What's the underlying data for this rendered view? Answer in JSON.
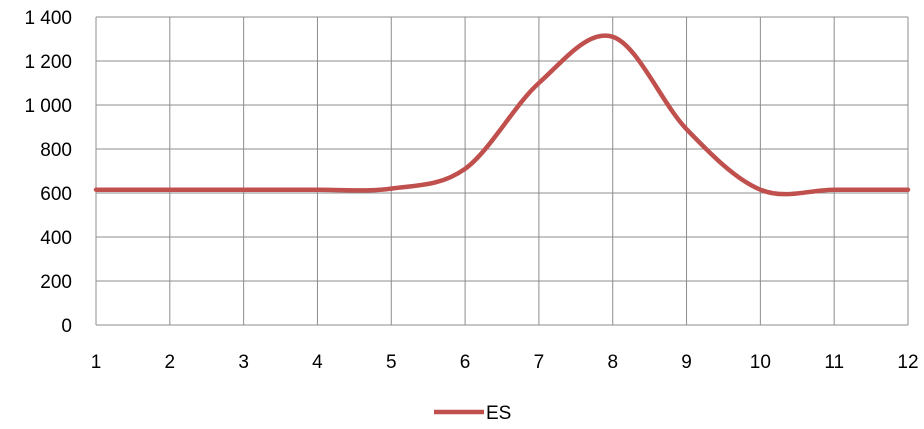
{
  "chart_data": {
    "type": "line",
    "x": [
      1,
      2,
      3,
      4,
      5,
      6,
      7,
      8,
      9,
      10,
      11,
      12
    ],
    "series": [
      {
        "name": "ES",
        "color": "#c0504d",
        "values": [
          615,
          615,
          615,
          615,
          620,
          710,
          1100,
          1310,
          890,
          615,
          615,
          615
        ]
      }
    ],
    "xlim": [
      1,
      12
    ],
    "ylim": [
      0,
      1400
    ],
    "x_ticks": [
      "1",
      "2",
      "3",
      "4",
      "5",
      "6",
      "7",
      "8",
      "9",
      "10",
      "11",
      "12"
    ],
    "y_ticks": [
      "0",
      "200",
      "400",
      "600",
      "800",
      "1 000",
      "1 200",
      "1 400"
    ],
    "grid": true,
    "legend_position": "bottom",
    "smooth": true
  }
}
